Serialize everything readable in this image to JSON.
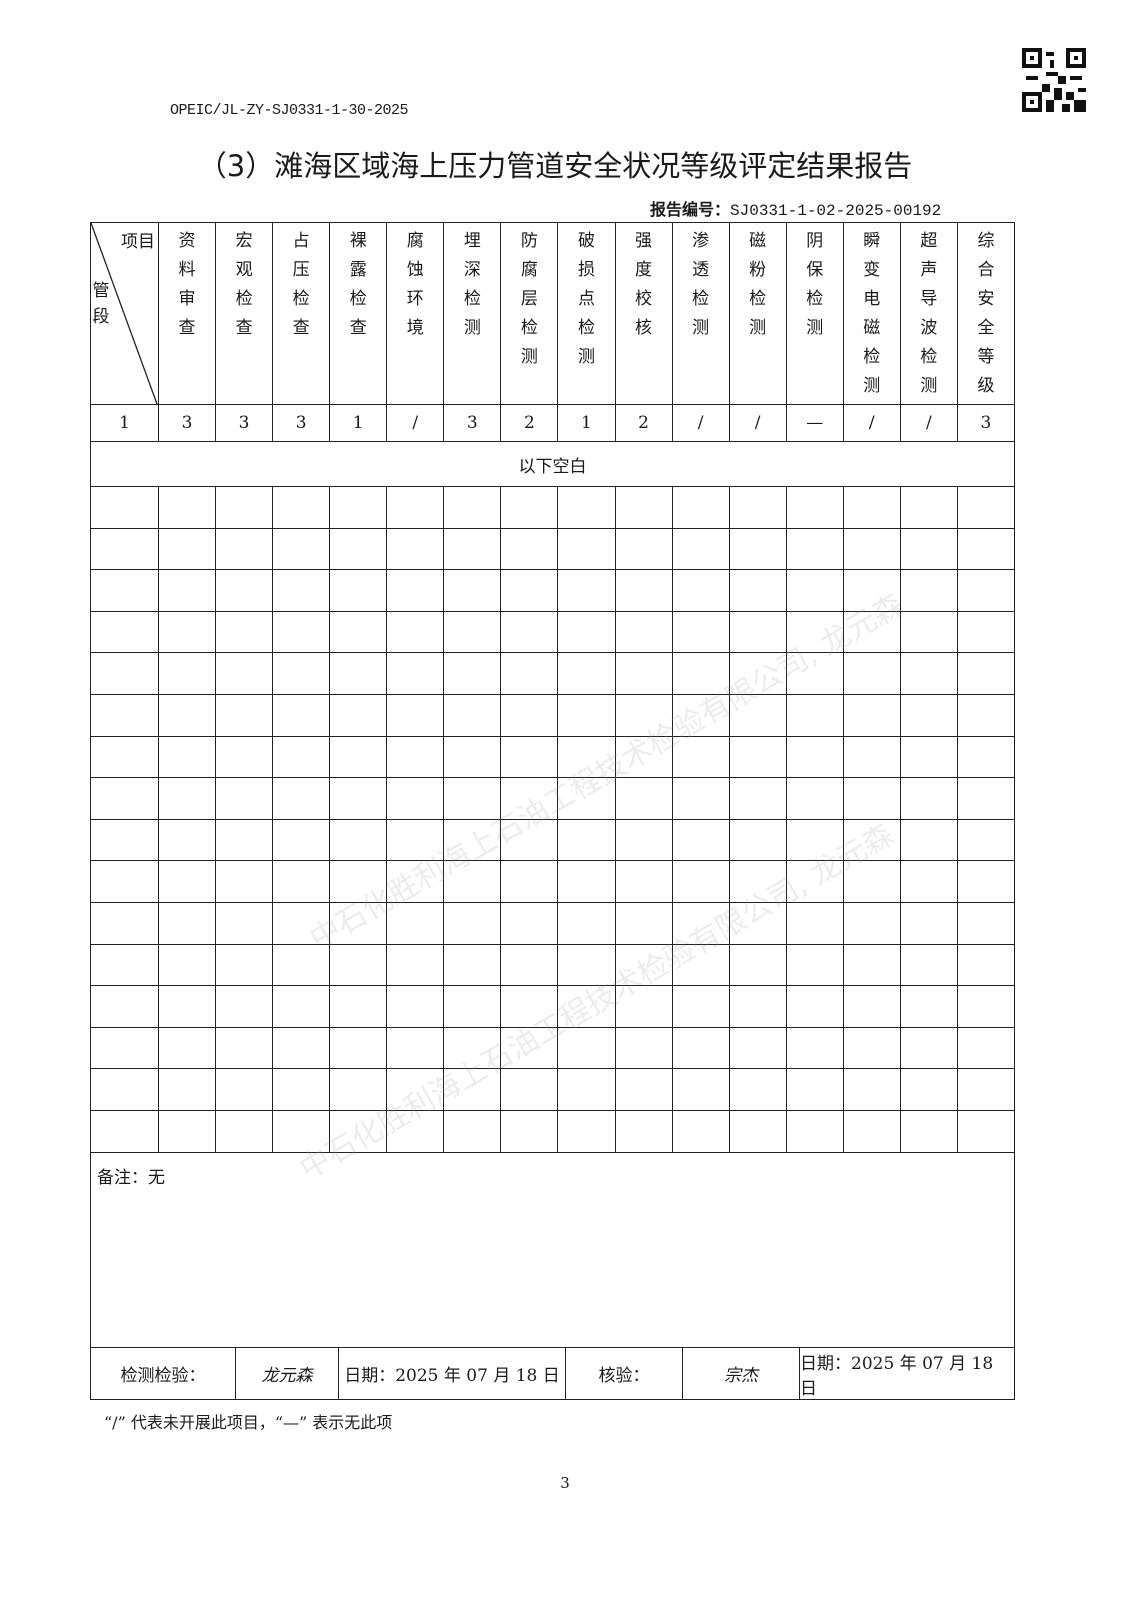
{
  "doc_code": "OPEIC/JL-ZY-SJ0331-1-30-2025",
  "title": "（3）滩海区域海上压力管道安全状况等级评定结果报告",
  "report_no_label": "报告编号：",
  "report_no": "SJ0331-1-02-2025-00192",
  "table": {
    "corner_top": "项目",
    "corner_bottom": "管段",
    "columns": [
      "资料审查",
      "宏观检查",
      "占压检查",
      "裸露检查",
      "腐蚀环境",
      "埋深检测",
      "防腐层检测",
      "破损点检测",
      "强度校核",
      "渗透检测",
      "磁粉检测",
      "阴保检测",
      "瞬变电磁检测",
      "超声导波检测",
      "综合安全等级"
    ],
    "rows": [
      [
        "1",
        "3",
        "3",
        "3",
        "1",
        "/",
        "3",
        "2",
        "1",
        "2",
        "/",
        "/",
        "—",
        "/",
        "/",
        "3"
      ]
    ],
    "blank_text": "以下空白"
  },
  "remarks": "备注：无",
  "sign": {
    "inspector_label": "检测检验：",
    "inspector_signature": "龙元森",
    "date1": "日期：2025 年 07 月 18 日",
    "reviewer_label": "核验：",
    "reviewer_signature": "宗杰",
    "date2": "日期：2025 年 07 月 18 日"
  },
  "footnote": "“/” 代表未开展此项目，“—” 表示无此项",
  "page_number": "3",
  "watermark": "中石化胜利海上石油工程技术检验有限公司, 龙元森"
}
